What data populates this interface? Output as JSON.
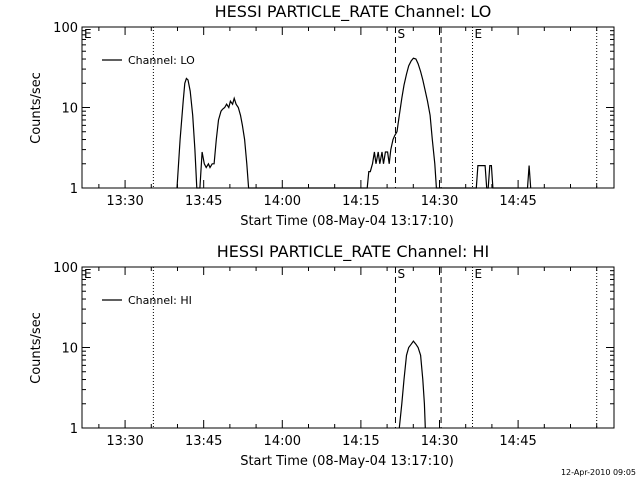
{
  "footer": {
    "timestamp": "12-Apr-2010 09:05"
  },
  "chart_data": [
    {
      "type": "line",
      "title": "HESSI PARTICLE_RATE Channel: LO",
      "xlabel": "Start Time (08-May-04 13:17:10)",
      "ylabel": "Counts/sec",
      "y_scale": "log",
      "xlim": [
        13.363,
        15.055
      ],
      "ylim": [
        1,
        100
      ],
      "x_ticks": [
        {
          "value": 13.5,
          "label": "13:30"
        },
        {
          "value": 13.75,
          "label": "13:45"
        },
        {
          "value": 14.0,
          "label": "14:00"
        },
        {
          "value": 14.25,
          "label": "14:15"
        },
        {
          "value": 14.5,
          "label": "14:30"
        },
        {
          "value": 14.75,
          "label": "14:45"
        }
      ],
      "y_ticks": [
        {
          "value": 1,
          "label": "1"
        },
        {
          "value": 10,
          "label": "10"
        },
        {
          "value": 100,
          "label": "100"
        }
      ],
      "markers": [
        {
          "x": 13.363,
          "label": "E",
          "style": "none"
        },
        {
          "x": 13.59,
          "label": "",
          "style": "dotted"
        },
        {
          "x": 14.36,
          "label": "S",
          "style": "dashed"
        },
        {
          "x": 14.505,
          "label": "",
          "style": "dashed"
        },
        {
          "x": 14.605,
          "label": "E",
          "style": "dotted"
        },
        {
          "x": 15.0,
          "label": "",
          "style": "dotted"
        }
      ],
      "legend": {
        "position": "top-left",
        "entries": [
          "Channel: LO"
        ]
      },
      "series": [
        {
          "name": "Channel: LO",
          "points": [
            [
              13.665,
              1
            ],
            [
              13.675,
              4
            ],
            [
              13.685,
              12
            ],
            [
              13.69,
              20
            ],
            [
              13.695,
              23
            ],
            [
              13.7,
              22
            ],
            [
              13.707,
              16
            ],
            [
              13.715,
              8
            ],
            [
              13.722,
              3
            ],
            [
              13.728,
              1
            ],
            [
              13.738,
              1
            ],
            [
              13.745,
              2.8
            ],
            [
              13.752,
              2
            ],
            [
              13.758,
              1.8
            ],
            [
              13.765,
              2
            ],
            [
              13.77,
              1.8
            ],
            [
              13.777,
              2
            ],
            [
              13.783,
              2
            ],
            [
              13.79,
              4
            ],
            [
              13.797,
              7
            ],
            [
              13.805,
              9
            ],
            [
              13.81,
              9.5
            ],
            [
              13.817,
              10
            ],
            [
              13.823,
              11
            ],
            [
              13.83,
              10
            ],
            [
              13.835,
              12
            ],
            [
              13.842,
              11
            ],
            [
              13.847,
              13
            ],
            [
              13.853,
              11
            ],
            [
              13.86,
              10
            ],
            [
              13.867,
              8
            ],
            [
              13.873,
              6
            ],
            [
              13.88,
              4
            ],
            [
              13.887,
              2
            ],
            [
              13.893,
              1
            ],
            [
              14.27,
              1
            ],
            [
              14.275,
              1.6
            ],
            [
              14.28,
              1.6
            ],
            [
              14.287,
              2
            ],
            [
              14.293,
              2.8
            ],
            [
              14.298,
              2
            ],
            [
              14.305,
              2.8
            ],
            [
              14.31,
              2
            ],
            [
              14.317,
              2.8
            ],
            [
              14.322,
              2
            ],
            [
              14.328,
              2.8
            ],
            [
              14.335,
              2.8
            ],
            [
              14.34,
              2
            ],
            [
              14.345,
              3
            ],
            [
              14.352,
              4
            ],
            [
              14.358,
              4.5
            ],
            [
              14.365,
              5
            ],
            [
              14.372,
              8
            ],
            [
              14.38,
              13
            ],
            [
              14.387,
              19
            ],
            [
              14.395,
              26
            ],
            [
              14.402,
              33
            ],
            [
              14.41,
              38
            ],
            [
              14.417,
              41
            ],
            [
              14.425,
              40
            ],
            [
              14.432,
              35
            ],
            [
              14.44,
              28
            ],
            [
              14.447,
              22
            ],
            [
              14.455,
              16
            ],
            [
              14.462,
              12
            ],
            [
              14.47,
              8
            ],
            [
              14.477,
              4
            ],
            [
              14.485,
              2
            ],
            [
              14.49,
              1
            ],
            [
              14.617,
              1
            ],
            [
              14.622,
              1.9
            ],
            [
              14.63,
              1.9
            ],
            [
              14.637,
              1.9
            ],
            [
              14.645,
              1.9
            ],
            [
              14.65,
              1
            ],
            [
              14.655,
              1
            ],
            [
              14.66,
              1.9
            ],
            [
              14.665,
              1.9
            ],
            [
              14.67,
              1
            ],
            [
              14.78,
              1
            ],
            [
              14.785,
              1.9
            ],
            [
              14.79,
              1
            ]
          ]
        }
      ]
    },
    {
      "type": "line",
      "title": "HESSI PARTICLE_RATE Channel: HI",
      "xlabel": "Start Time (08-May-04 13:17:10)",
      "ylabel": "Counts/sec",
      "y_scale": "log",
      "xlim": [
        13.363,
        15.055
      ],
      "ylim": [
        1,
        100
      ],
      "x_ticks": [
        {
          "value": 13.5,
          "label": "13:30"
        },
        {
          "value": 13.75,
          "label": "13:45"
        },
        {
          "value": 14.0,
          "label": "14:00"
        },
        {
          "value": 14.25,
          "label": "14:15"
        },
        {
          "value": 14.5,
          "label": "14:30"
        },
        {
          "value": 14.75,
          "label": "14:45"
        }
      ],
      "y_ticks": [
        {
          "value": 1,
          "label": "1"
        },
        {
          "value": 10,
          "label": "10"
        },
        {
          "value": 100,
          "label": "100"
        }
      ],
      "markers": [
        {
          "x": 13.363,
          "label": "E",
          "style": "none"
        },
        {
          "x": 13.59,
          "label": "",
          "style": "dotted"
        },
        {
          "x": 14.36,
          "label": "S",
          "style": "dashed"
        },
        {
          "x": 14.505,
          "label": "",
          "style": "dashed"
        },
        {
          "x": 14.605,
          "label": "E",
          "style": "dotted"
        },
        {
          "x": 15.0,
          "label": "",
          "style": "dotted"
        }
      ],
      "legend": {
        "position": "top-left",
        "entries": [
          "Channel: HI"
        ]
      },
      "series": [
        {
          "name": "Channel: HI",
          "points": [
            [
              14.372,
              1
            ],
            [
              14.38,
              2
            ],
            [
              14.387,
              4
            ],
            [
              14.395,
              8
            ],
            [
              14.402,
              10
            ],
            [
              14.41,
              11
            ],
            [
              14.417,
              12
            ],
            [
              14.425,
              11
            ],
            [
              14.432,
              10
            ],
            [
              14.44,
              8
            ],
            [
              14.447,
              4
            ],
            [
              14.452,
              2
            ],
            [
              14.455,
              1
            ]
          ]
        }
      ]
    }
  ]
}
